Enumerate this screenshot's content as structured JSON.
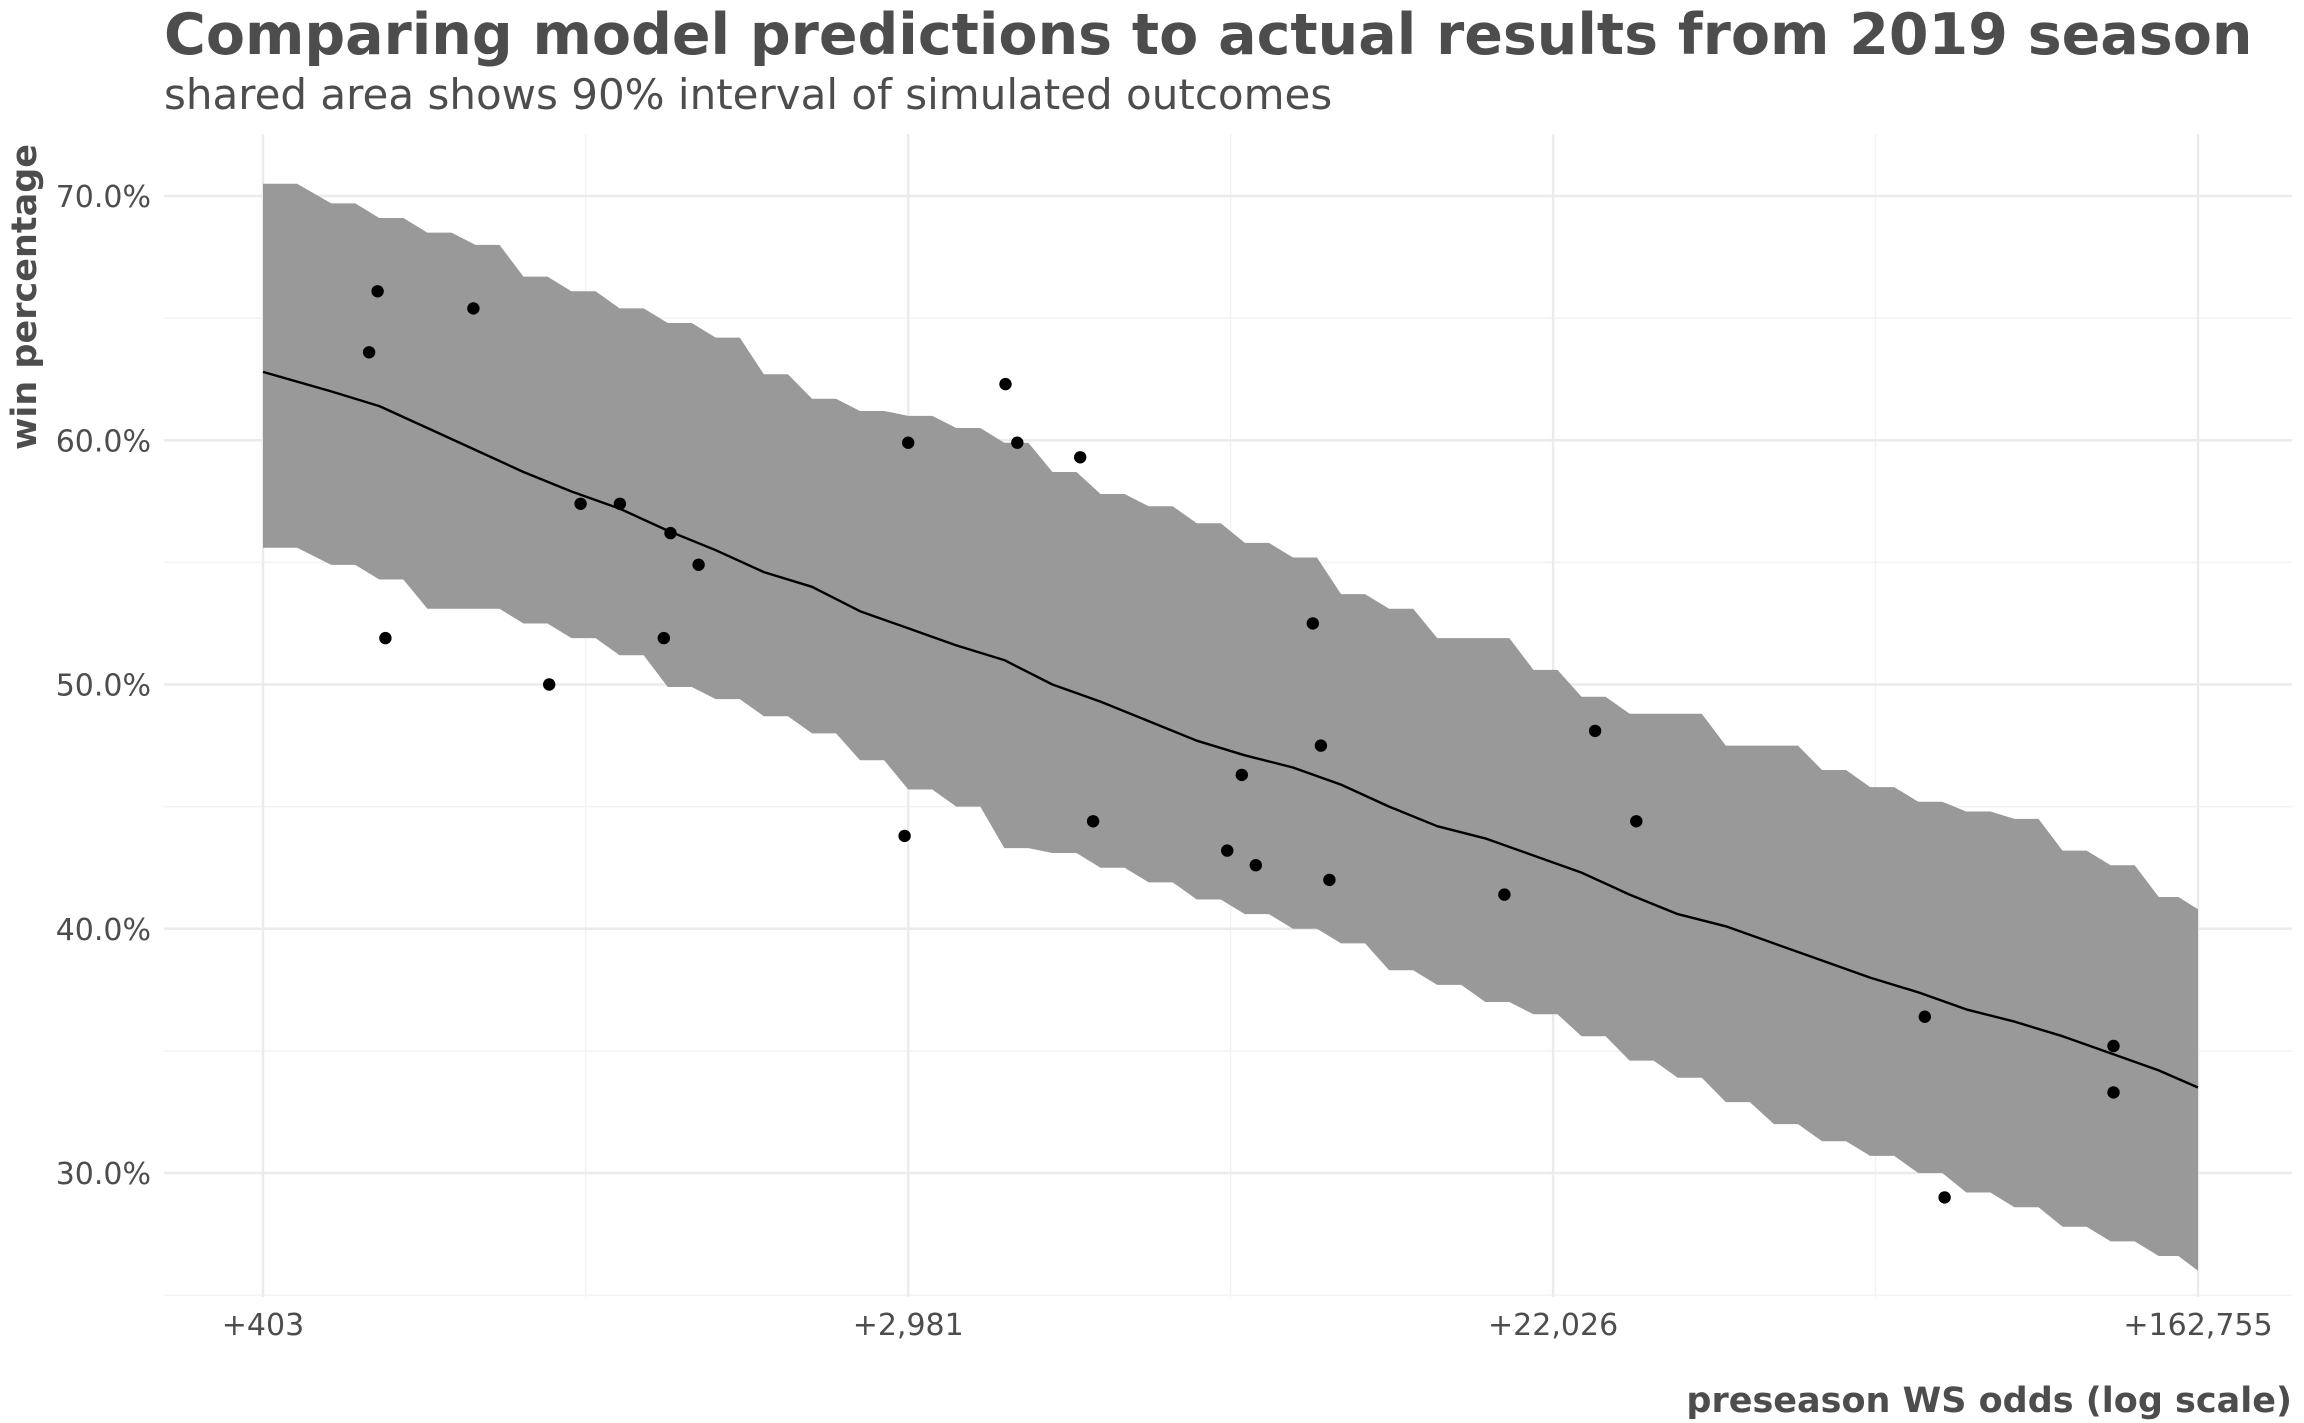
{
  "chart_data": {
    "type": "area",
    "title": "Comparing model predictions to actual results from 2019 season",
    "subtitle": "shared area shows 90% interval of simulated outcomes",
    "xlabel": "preseason WS odds (log scale)",
    "ylabel": "win percentage",
    "x_scale": "log",
    "x_range": [
      403,
      162755
    ],
    "y_range": [
      0.25,
      0.725
    ],
    "x_ticks": [
      {
        "value": 403,
        "label": "+403"
      },
      {
        "value": 2981,
        "label": "+2,981"
      },
      {
        "value": 22026,
        "label": "+22,026"
      },
      {
        "value": 162755,
        "label": "+162,755"
      }
    ],
    "y_ticks": [
      {
        "value": 0.3,
        "label": "30.0%"
      },
      {
        "value": 0.4,
        "label": "40.0%"
      },
      {
        "value": 0.5,
        "label": "50.0%"
      },
      {
        "value": 0.6,
        "label": "60.0%"
      },
      {
        "value": 0.7,
        "label": "70.0%"
      }
    ],
    "grid": true,
    "interval_color": "#999999",
    "line_color": "#000000",
    "point_color": "#000000",
    "interval_series": {
      "name": "90% interval of simulated outcomes",
      "x": [
        403,
        498,
        578,
        671,
        779,
        904,
        1049,
        1218,
        1414,
        1641,
        1905,
        2212,
        2567,
        2981,
        3460,
        4016,
        4662,
        5412,
        6283,
        7294,
        8467,
        9829,
        11410,
        13246,
        15377,
        17850,
        20722,
        24055,
        27925,
        32418,
        37633,
        43688,
        50716,
        58876,
        68348,
        79344,
        92109,
        106928,
        124130,
        144100,
        162755
      ],
      "upper": [
        0.705,
        0.697,
        0.691,
        0.685,
        0.68,
        0.667,
        0.661,
        0.654,
        0.648,
        0.642,
        0.627,
        0.617,
        0.612,
        0.61,
        0.605,
        0.599,
        0.587,
        0.578,
        0.573,
        0.566,
        0.558,
        0.552,
        0.537,
        0.531,
        0.519,
        0.519,
        0.506,
        0.495,
        0.488,
        0.488,
        0.475,
        0.475,
        0.465,
        0.458,
        0.452,
        0.448,
        0.445,
        0.432,
        0.426,
        0.413,
        0.408
      ],
      "lower": [
        0.556,
        0.549,
        0.543,
        0.531,
        0.531,
        0.525,
        0.519,
        0.512,
        0.499,
        0.494,
        0.487,
        0.48,
        0.469,
        0.457,
        0.45,
        0.433,
        0.431,
        0.425,
        0.419,
        0.412,
        0.406,
        0.4,
        0.394,
        0.383,
        0.377,
        0.37,
        0.365,
        0.356,
        0.346,
        0.339,
        0.329,
        0.32,
        0.313,
        0.307,
        0.3,
        0.292,
        0.286,
        0.278,
        0.272,
        0.266,
        0.26
      ]
    },
    "line_series": {
      "name": "model prediction",
      "x": [
        403,
        498,
        578,
        671,
        779,
        904,
        1049,
        1218,
        1414,
        1641,
        1905,
        2212,
        2567,
        2981,
        3460,
        4016,
        4662,
        5412,
        6283,
        7294,
        8467,
        9829,
        11410,
        13246,
        15377,
        17850,
        20722,
        24055,
        27925,
        32418,
        37633,
        43688,
        50716,
        58876,
        68348,
        79344,
        92109,
        106928,
        124130,
        144100,
        162755
      ],
      "y": [
        0.628,
        0.62,
        0.614,
        0.605,
        0.596,
        0.587,
        0.579,
        0.572,
        0.563,
        0.555,
        0.546,
        0.54,
        0.53,
        0.523,
        0.516,
        0.51,
        0.5,
        0.493,
        0.485,
        0.477,
        0.471,
        0.466,
        0.459,
        0.45,
        0.442,
        0.437,
        0.43,
        0.423,
        0.414,
        0.406,
        0.401,
        0.394,
        0.387,
        0.38,
        0.374,
        0.367,
        0.362,
        0.356,
        0.349,
        0.342,
        0.335
      ]
    },
    "points": {
      "name": "actual results",
      "x": [
        575,
        560,
        589,
        774,
        979,
        1079,
        1219,
        1397,
        1426,
        1556,
        2981,
        2948,
        4030,
        4181,
        5081,
        5288,
        8016,
        8388,
        8761,
        10721,
        11005,
        10454,
        18938,
        25090,
        28510,
        69750,
        74180,
        125250,
        125250
      ],
      "y": [
        0.661,
        0.636,
        0.519,
        0.654,
        0.5,
        0.574,
        0.574,
        0.519,
        0.562,
        0.549,
        0.599,
        0.438,
        0.623,
        0.599,
        0.593,
        0.444,
        0.432,
        0.463,
        0.426,
        0.475,
        0.42,
        0.525,
        0.414,
        0.481,
        0.444,
        0.364,
        0.29,
        0.352,
        0.333
      ]
    }
  }
}
